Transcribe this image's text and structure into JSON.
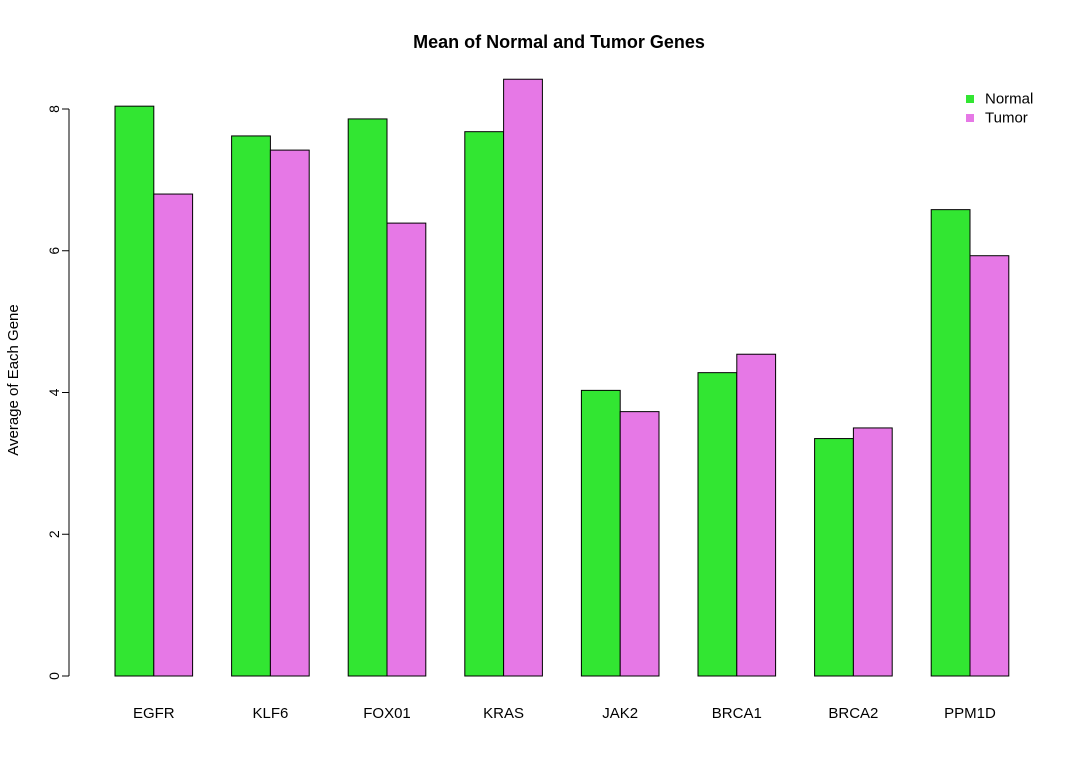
{
  "chart_data": {
    "type": "bar",
    "title": "Mean of Normal and Tumor Genes",
    "xlabel": "",
    "ylabel": "Average of Each Gene",
    "categories": [
      "EGFR",
      "KLF6",
      "FOX01",
      "KRAS",
      "JAK2",
      "BRCA1",
      "BRCA2",
      "PPM1D"
    ],
    "series": [
      {
        "name": "Normal",
        "color": "#32e632",
        "values": [
          8.04,
          7.62,
          7.86,
          7.68,
          4.03,
          4.28,
          3.35,
          6.58
        ]
      },
      {
        "name": "Tumor",
        "color": "#e678e6",
        "values": [
          6.8,
          7.42,
          6.39,
          8.42,
          3.73,
          4.54,
          3.5,
          5.93
        ]
      }
    ],
    "yticks": [
      0,
      2,
      4,
      6,
      8
    ],
    "ylim": [
      0,
      8.42
    ],
    "grid": false,
    "legend": {
      "position": "top-right",
      "entries": [
        "Normal",
        "Tumor"
      ]
    }
  }
}
